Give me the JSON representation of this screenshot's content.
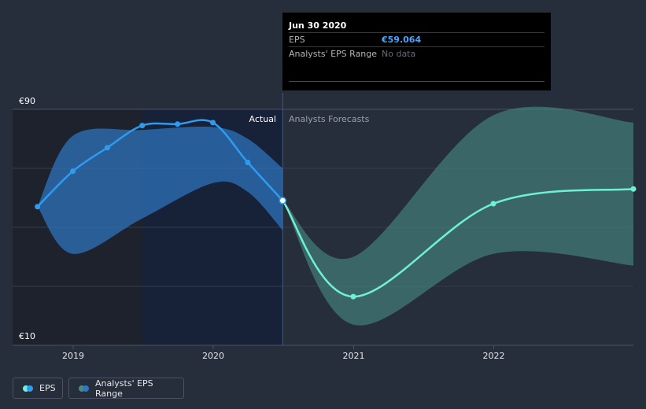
{
  "chart_data": {
    "type": "line",
    "y_tick_labels": [
      "€90",
      "€10"
    ],
    "ylim": [
      10,
      90
    ],
    "x_tick_labels": [
      "2019",
      "2020",
      "2021",
      "2022"
    ],
    "divider_date": "2020-06-30",
    "section_labels": {
      "actual": "Actual",
      "forecast": "Analysts Forecasts"
    },
    "series": [
      {
        "name": "EPS",
        "kind": "actual",
        "color": "#2f9bf0",
        "points": [
          {
            "x": "2018-09-30",
            "y": 57
          },
          {
            "x": "2018-12-31",
            "y": 69
          },
          {
            "x": "2019-03-31",
            "y": 77
          },
          {
            "x": "2019-06-30",
            "y": 84.5
          },
          {
            "x": "2019-09-30",
            "y": 85
          },
          {
            "x": "2019-12-31",
            "y": 85.5
          },
          {
            "x": "2020-03-31",
            "y": 72
          },
          {
            "x": "2020-06-30",
            "y": 59.064
          }
        ]
      },
      {
        "name": "EPS",
        "kind": "forecast",
        "color": "#6ff0d6",
        "points": [
          {
            "x": "2020-06-30",
            "y": 59.064
          },
          {
            "x": "2020-12-31",
            "y": 26.5
          },
          {
            "x": "2021-12-31",
            "y": 58
          },
          {
            "x": "2022-12-31",
            "y": 63
          }
        ]
      }
    ],
    "actual_range": {
      "color": "#2f78c4",
      "points": [
        {
          "x": "2018-09-30",
          "lo": 57,
          "hi": 57
        },
        {
          "x": "2018-12-31",
          "lo": 41,
          "hi": 81
        },
        {
          "x": "2019-06-30",
          "lo": 53,
          "hi": 83
        },
        {
          "x": "2019-12-31",
          "lo": 65,
          "hi": 84
        },
        {
          "x": "2020-03-31",
          "lo": 62,
          "hi": 80
        },
        {
          "x": "2020-06-30",
          "lo": 49,
          "hi": 70
        }
      ]
    },
    "forecast_range": {
      "color": "#4a8c85",
      "points": [
        {
          "x": "2020-06-30",
          "lo": 59.064,
          "hi": 59.064
        },
        {
          "x": "2020-12-31",
          "lo": 17,
          "hi": 40
        },
        {
          "x": "2021-12-31",
          "lo": 41,
          "hi": 88
        },
        {
          "x": "2022-12-31",
          "lo": 37,
          "hi": 85.5
        }
      ]
    },
    "grid": true
  },
  "tooltip": {
    "date": "Jun 30 2020",
    "rows": [
      {
        "label": "EPS",
        "value": "€59.064"
      },
      {
        "label": "Analysts' EPS Range",
        "value": "No data"
      }
    ]
  },
  "legend": {
    "eps": {
      "label": "EPS",
      "colors": [
        "#6ff0d6",
        "#2f9bf0"
      ]
    },
    "range": {
      "label": "Analysts' EPS Range",
      "colors": [
        "#4a8c85",
        "#2f78c4"
      ]
    }
  }
}
